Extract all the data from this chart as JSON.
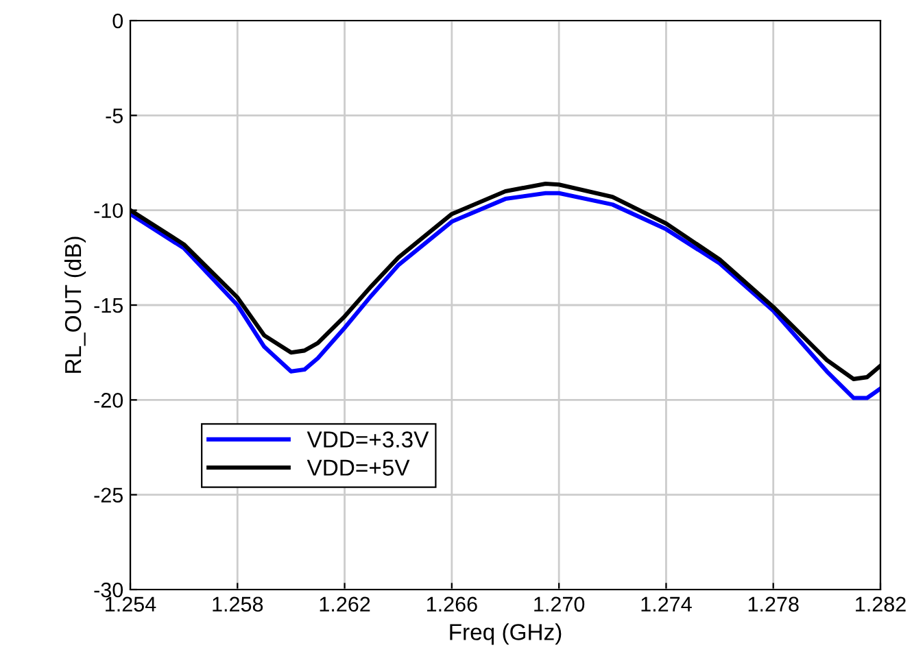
{
  "chart_data": {
    "type": "line",
    "xlabel": "Freq (GHz)",
    "ylabel": "RL_OUT (dB)",
    "xlim": [
      1.254,
      1.282
    ],
    "ylim": [
      -30,
      0
    ],
    "xticks": [
      1.254,
      1.258,
      1.262,
      1.266,
      {
        "value": 1.27,
        "label": "1.270"
      },
      1.274,
      1.278,
      1.282
    ],
    "yticks": [
      -30,
      -25,
      -20,
      -15,
      -10,
      -5,
      0
    ],
    "grid": true,
    "legend": "bottom left",
    "marker": "none",
    "line_style": "solid",
    "x": [
      1.254,
      1.256,
      1.258,
      1.259,
      1.26,
      1.2605,
      1.261,
      1.262,
      1.263,
      1.264,
      1.266,
      1.268,
      1.2695,
      1.27,
      1.272,
      1.274,
      1.276,
      1.278,
      1.28,
      1.281,
      1.2815,
      1.282
    ],
    "series": [
      {
        "name": "VDD=+3.3V",
        "color": "#0000ff",
        "values": [
          -10.2,
          -12.0,
          -15.0,
          -17.2,
          -18.5,
          -18.4,
          -17.8,
          -16.2,
          -14.5,
          -12.9,
          -10.6,
          -9.4,
          -9.1,
          -9.1,
          -9.7,
          -11.0,
          -12.8,
          -15.3,
          -18.5,
          -19.9,
          -19.9,
          -19.4
        ]
      },
      {
        "name": "VDD=+5V",
        "color": "#000000",
        "values": [
          -10.0,
          -11.8,
          -14.6,
          -16.6,
          -17.5,
          -17.4,
          -17.0,
          -15.6,
          -14.0,
          -12.5,
          -10.2,
          -9.0,
          -8.6,
          -8.65,
          -9.3,
          -10.7,
          -12.6,
          -15.1,
          -17.9,
          -18.9,
          -18.8,
          -18.2
        ]
      }
    ]
  }
}
